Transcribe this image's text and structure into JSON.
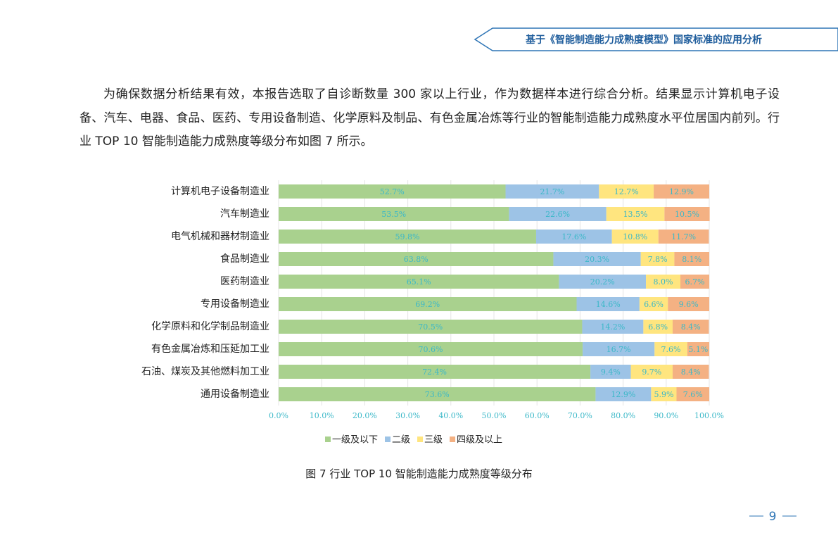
{
  "header": {
    "title": "基于《智能制造能力成熟度模型》国家标准的应用分析"
  },
  "paragraph": "为确保数据分析结果有效，本报告选取了自诊断数量 300 家以上行业，作为数据样本进行综合分析。结果显示计算机电子设备、汽车、电器、食品、医药、专用设备制造、化学原料及制品、有色金属冶炼等行业的智能制造能力成熟度水平位居国内前列。行业 TOP 10 智能制造能力成熟度等级分布如图 7 所示。",
  "chart_data": {
    "type": "stacked_barh",
    "categories": [
      "计算机电子设备制造业",
      "汽车制造业",
      "电气机械和器材制造业",
      "食品制造业",
      "医药制造业",
      "专用设备制造业",
      "化学原料和化学制品制造业",
      "有色金属冶炼和压延加工业",
      "石油、煤炭及其他燃料加工业",
      "通用设备制造业"
    ],
    "series": [
      {
        "name": "一级及以下",
        "color": "#a9d18e",
        "values": [
          52.7,
          53.5,
          59.8,
          63.8,
          65.1,
          69.2,
          70.5,
          70.6,
          72.4,
          73.6
        ],
        "value_labels": [
          "52.7%",
          "53.5%",
          "59.8%",
          "63.8%",
          "65.1%",
          "69.2%",
          "70.5%",
          "70.6%",
          "72.4%",
          "73.6%"
        ]
      },
      {
        "name": "二级",
        "color": "#9dc3e6",
        "values": [
          21.7,
          22.6,
          17.6,
          20.3,
          20.2,
          14.6,
          14.2,
          16.7,
          9.4,
          12.9
        ],
        "value_labels": [
          "21.7%",
          "22.6%",
          "17.6%",
          "20.3%",
          "20.2%",
          "14.6%",
          "14.2%",
          "16.7%",
          "9.4%",
          "12.9%"
        ]
      },
      {
        "name": "三级",
        "color": "#ffe57f",
        "values": [
          12.7,
          13.5,
          10.8,
          7.8,
          8.0,
          6.6,
          6.8,
          7.6,
          9.7,
          5.9
        ],
        "value_labels": [
          "12.7%",
          "13.5%",
          "10.8%",
          "7.8%",
          "8.0%",
          "6.6%",
          "6.8%",
          "7.6%",
          "9.7%",
          "5.9%"
        ]
      },
      {
        "name": "四级及以上",
        "color": "#f4b183",
        "values": [
          12.9,
          10.5,
          11.7,
          8.1,
          6.7,
          9.6,
          8.4,
          5.1,
          8.4,
          7.6
        ],
        "value_labels": [
          "12.9%",
          "10.5%",
          "11.7%",
          "8.1%",
          "6.7%",
          "9.6%",
          "8.4%",
          "5.1%",
          "8.4%",
          "7.6%"
        ]
      }
    ],
    "xlim": [
      0,
      100
    ],
    "xticks": [
      {
        "value": 0,
        "label": "0.0%"
      },
      {
        "value": 10,
        "label": "10.0%"
      },
      {
        "value": 20,
        "label": "20.0%"
      },
      {
        "value": 30,
        "label": "30.0%"
      },
      {
        "value": 40,
        "label": "40.0%"
      },
      {
        "value": 50,
        "label": "50.0%"
      },
      {
        "value": 60,
        "label": "60.0%"
      },
      {
        "value": 70,
        "label": "70.0%"
      },
      {
        "value": 80,
        "label": "80.0%"
      },
      {
        "value": 90,
        "label": "90.0%"
      },
      {
        "value": 100,
        "label": "100.0%"
      }
    ],
    "legend": "bottom"
  },
  "caption": "图 7  行业 TOP 10 智能制造能力成熟度等级分布",
  "page_number": "9"
}
